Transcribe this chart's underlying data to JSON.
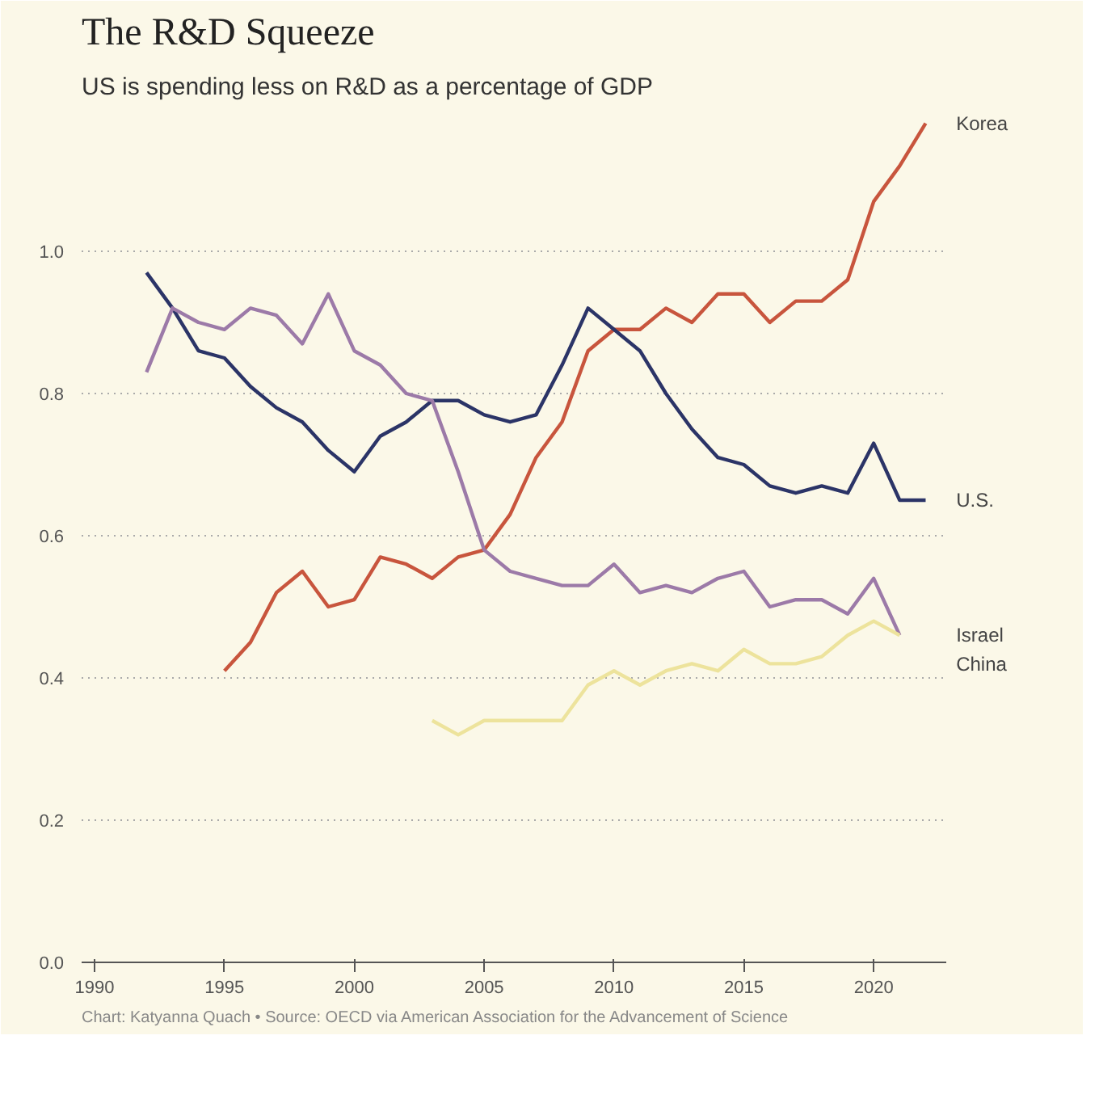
{
  "chart_data": {
    "type": "line",
    "title": "The R&D Squeeze",
    "subtitle": "US is spending less on R&D as a percentage of GDP",
    "annotations": [
      "Chart: Katyanna Quach • Source: OECD via American Association for the Advancement of Science"
    ],
    "xlim": [
      1989.5,
      2022.8
    ],
    "xticks": [
      1990,
      1995,
      2000,
      2005,
      2010,
      2015,
      2020
    ],
    "ylim": [
      0,
      1.2
    ],
    "yticks": [
      {
        "value": 0,
        "label": "0.0"
      },
      0.2,
      0.4,
      0.6,
      0.8,
      {
        "value": 1,
        "label": "1.0"
      }
    ],
    "grid": "y",
    "marker": "none",
    "line_style": "solid",
    "series": [
      {
        "name": "Korea",
        "color": "#c8553d",
        "x": [
          1995,
          1996,
          1997,
          1998,
          1999,
          2000,
          2001,
          2002,
          2003,
          2004,
          2005,
          2006,
          2007,
          2008,
          2009,
          2010,
          2011,
          2012,
          2013,
          2014,
          2015,
          2016,
          2017,
          2018,
          2019,
          2020,
          2021,
          2022
        ],
        "values": [
          0.41,
          0.45,
          0.52,
          0.55,
          0.5,
          0.51,
          0.57,
          0.56,
          0.54,
          0.57,
          0.58,
          0.63,
          0.71,
          0.76,
          0.86,
          0.89,
          0.89,
          0.92,
          0.9,
          0.94,
          0.94,
          0.9,
          0.93,
          0.93,
          0.96,
          1.07,
          1.12,
          1.18
        ]
      },
      {
        "name": "U.S.",
        "color": "#2b3467",
        "x": [
          1992,
          1993,
          1994,
          1995,
          1996,
          1997,
          1998,
          1999,
          2000,
          2001,
          2002,
          2003,
          2004,
          2005,
          2006,
          2007,
          2008,
          2009,
          2010,
          2011,
          2012,
          2013,
          2014,
          2015,
          2016,
          2017,
          2018,
          2019,
          2020,
          2021,
          2022
        ],
        "values": [
          0.97,
          0.92,
          0.86,
          0.85,
          0.81,
          0.78,
          0.76,
          0.72,
          0.69,
          0.74,
          0.76,
          0.79,
          0.79,
          0.77,
          0.76,
          0.77,
          0.84,
          0.92,
          0.89,
          0.86,
          0.8,
          0.75,
          0.71,
          0.7,
          0.67,
          0.66,
          0.67,
          0.66,
          0.73,
          0.65,
          0.65
        ]
      },
      {
        "name": "Israel",
        "color": "#9c7aa8",
        "x": [
          1992,
          1993,
          1994,
          1995,
          1996,
          1997,
          1998,
          1999,
          2000,
          2001,
          2002,
          2003,
          2004,
          2005,
          2006,
          2007,
          2008,
          2009,
          2010,
          2011,
          2012,
          2013,
          2014,
          2015,
          2016,
          2017,
          2018,
          2019,
          2020,
          2021
        ],
        "values": [
          0.83,
          0.92,
          0.9,
          0.89,
          0.92,
          0.91,
          0.87,
          0.94,
          0.86,
          0.84,
          0.8,
          0.79,
          0.69,
          0.58,
          0.55,
          0.54,
          0.53,
          0.53,
          0.56,
          0.52,
          0.53,
          0.52,
          0.54,
          0.55,
          0.5,
          0.51,
          0.51,
          0.49,
          0.54,
          0.46
        ]
      },
      {
        "name": "China",
        "color": "#ede39c",
        "x": [
          2003,
          2004,
          2005,
          2006,
          2007,
          2008,
          2009,
          2010,
          2011,
          2012,
          2013,
          2014,
          2015,
          2016,
          2017,
          2018,
          2019,
          2020,
          2021
        ],
        "values": [
          0.34,
          0.32,
          0.34,
          0.34,
          0.34,
          0.34,
          0.39,
          0.41,
          0.39,
          0.41,
          0.42,
          0.41,
          0.44,
          0.42,
          0.42,
          0.43,
          0.46,
          0.48,
          0.46
        ]
      }
    ]
  }
}
